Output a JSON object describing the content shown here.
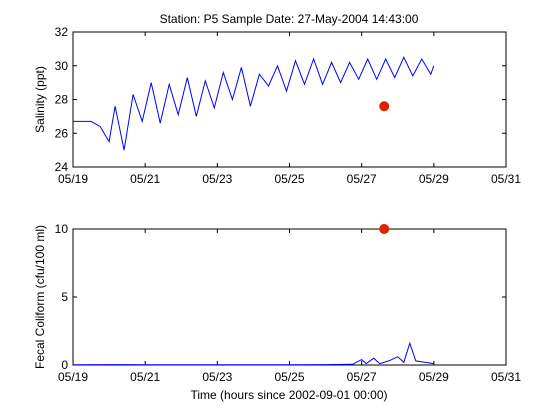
{
  "chart_data": [
    {
      "type": "line",
      "title": "Station: P5  Sample Date: 27-May-2004 14:43:00",
      "xlabel": "",
      "ylabel": "Salinity (ppt)",
      "xlim": [
        "05/19",
        "05/31"
      ],
      "ylim": [
        24,
        32
      ],
      "x_ticks": [
        "05/19",
        "05/21",
        "05/23",
        "05/25",
        "05/27",
        "05/29",
        "05/31"
      ],
      "y_ticks": [
        "24",
        "26",
        "28",
        "30",
        "32"
      ],
      "grid": false,
      "line_color": "#0000ff",
      "series": [
        {
          "values": [
            [
              "05/19",
              26.7
            ],
            [
              "05/19 12:00",
              26.7
            ],
            [
              "05/19 18:00",
              26.4
            ],
            [
              "05/20 00:00",
              25.5
            ],
            [
              "05/20 04:00",
              27.6
            ],
            [
              "05/20 10:00",
              25.0
            ],
            [
              "05/20 16:00",
              28.3
            ],
            [
              "05/20 22:00",
              26.7
            ],
            [
              "05/21 04:00",
              29.0
            ],
            [
              "05/21 10:00",
              26.6
            ],
            [
              "05/21 16:00",
              28.9
            ],
            [
              "05/21 22:00",
              27.1
            ],
            [
              "05/22 04:00",
              29.3
            ],
            [
              "05/22 10:00",
              27.0
            ],
            [
              "05/22 16:00",
              29.1
            ],
            [
              "05/22 22:00",
              27.5
            ],
            [
              "05/23 04:00",
              29.6
            ],
            [
              "05/23 10:00",
              28.0
            ],
            [
              "05/23 16:00",
              29.9
            ],
            [
              "05/23 22:00",
              27.6
            ],
            [
              "05/24 04:00",
              29.5
            ],
            [
              "05/24 10:00",
              28.8
            ],
            [
              "05/24 16:00",
              30.0
            ],
            [
              "05/24 22:00",
              28.5
            ],
            [
              "05/25 04:00",
              30.3
            ],
            [
              "05/25 10:00",
              28.9
            ],
            [
              "05/25 16:00",
              30.4
            ],
            [
              "05/25 22:00",
              28.9
            ],
            [
              "05/26 04:00",
              30.2
            ],
            [
              "05/26 10:00",
              29.0
            ],
            [
              "05/26 16:00",
              30.2
            ],
            [
              "05/26 22:00",
              29.2
            ],
            [
              "05/27 04:00",
              30.4
            ],
            [
              "05/27 10:00",
              29.2
            ],
            [
              "05/27 16:00",
              30.4
            ],
            [
              "05/27 22:00",
              29.3
            ],
            [
              "05/28 04:00",
              30.5
            ],
            [
              "05/28 10:00",
              29.4
            ],
            [
              "05/28 16:00",
              30.4
            ],
            [
              "05/28 22:00",
              29.5
            ],
            [
              "05/29 00:00",
              30.0
            ]
          ]
        }
      ],
      "sample_point": {
        "x": "05/27 15:00",
        "y": 27.6,
        "color": "#dd2200"
      }
    },
    {
      "type": "line",
      "title": "",
      "xlabel": "Time (hours since 2002-09-01 00:00)",
      "ylabel": "Fecal Coliform (cfu/100 ml)",
      "xlim": [
        "05/19",
        "05/31"
      ],
      "ylim": [
        0,
        10
      ],
      "x_ticks": [
        "05/19",
        "05/21",
        "05/23",
        "05/25",
        "05/27",
        "05/29",
        "05/31"
      ],
      "y_ticks": [
        "0",
        "5",
        "10"
      ],
      "grid": false,
      "line_color": "#0000ff",
      "series": [
        {
          "values": [
            [
              "05/19",
              0.02
            ],
            [
              "05/20 00:00",
              0.03
            ],
            [
              "05/21 00:00",
              0.02
            ],
            [
              "05/22 00:00",
              0.02
            ],
            [
              "05/23 00:00",
              0.02
            ],
            [
              "05/24 00:00",
              0.02
            ],
            [
              "05/25 00:00",
              0.02
            ],
            [
              "05/26 00:00",
              0.03
            ],
            [
              "05/26 18:00",
              0.05
            ],
            [
              "05/27 00:00",
              0.4
            ],
            [
              "05/27 03:00",
              0.1
            ],
            [
              "05/27 08:00",
              0.5
            ],
            [
              "05/27 12:00",
              0.1
            ],
            [
              "05/27 18:00",
              0.3
            ],
            [
              "05/28 00:00",
              0.6
            ],
            [
              "05/28 04:00",
              0.2
            ],
            [
              "05/28 08:00",
              1.6
            ],
            [
              "05/28 12:00",
              0.3
            ],
            [
              "05/28 18:00",
              0.2
            ],
            [
              "05/29 00:00",
              0.1
            ]
          ]
        }
      ],
      "sample_point": {
        "x": "05/27 15:00",
        "y": 10,
        "color": "#dd2200"
      }
    }
  ]
}
